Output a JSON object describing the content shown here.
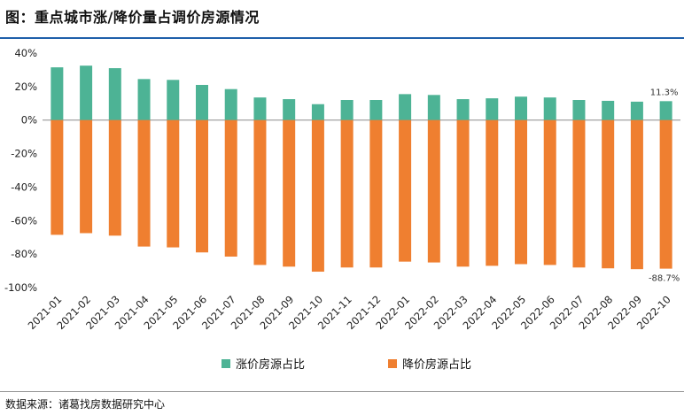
{
  "title": "图：重点城市涨/降价量占调价房源情况",
  "source": "数据来源：诸葛找房数据研究中心",
  "colors": {
    "rise": "#4db395",
    "fall": "#ef7f30",
    "axis": "#8c8c8c"
  },
  "chart_data": {
    "type": "bar",
    "title": "重点城市涨/降价量占调价房源情况",
    "categories": [
      "2021-01",
      "2021-02",
      "2021-03",
      "2021-04",
      "2021-05",
      "2021-06",
      "2021-07",
      "2021-08",
      "2021-09",
      "2021-10",
      "2021-11",
      "2021-12",
      "2022-01",
      "2022-02",
      "2022-03",
      "2022-04",
      "2022-05",
      "2022-06",
      "2022-07",
      "2022-08",
      "2022-09",
      "2022-10"
    ],
    "series": [
      {
        "name": "涨价房源占比",
        "values": [
          31.5,
          32.5,
          31.0,
          24.5,
          24.0,
          21.0,
          18.5,
          13.5,
          12.5,
          9.5,
          12.0,
          12.0,
          15.5,
          15.0,
          12.5,
          13.0,
          14.0,
          13.5,
          12.0,
          11.5,
          11.0,
          11.3
        ]
      },
      {
        "name": "降价房源占比",
        "values": [
          -68.5,
          -67.5,
          -69.0,
          -75.5,
          -76.0,
          -79.0,
          -81.5,
          -86.5,
          -87.5,
          -90.5,
          -88.0,
          -88.0,
          -84.5,
          -85.0,
          -87.5,
          -87.0,
          -86.0,
          -86.5,
          -88.0,
          -88.5,
          -89.0,
          -88.7
        ]
      }
    ],
    "ylim": [
      -100,
      40
    ],
    "yticks": [
      40,
      20,
      0,
      -20,
      -40,
      -60,
      -80,
      -100
    ],
    "ytick_labels": [
      "40%",
      "20%",
      "0%",
      "-20%",
      "-40%",
      "-60%",
      "-80%",
      "-100%"
    ],
    "annotations": [
      {
        "category": "2022-10",
        "series": "涨价房源占比",
        "text": "11.3%"
      },
      {
        "category": "2022-10",
        "series": "降价房源占比",
        "text": "-88.7%"
      }
    ],
    "legend_position": "bottom-center",
    "xlabel": "",
    "ylabel": "",
    "grid": false
  }
}
